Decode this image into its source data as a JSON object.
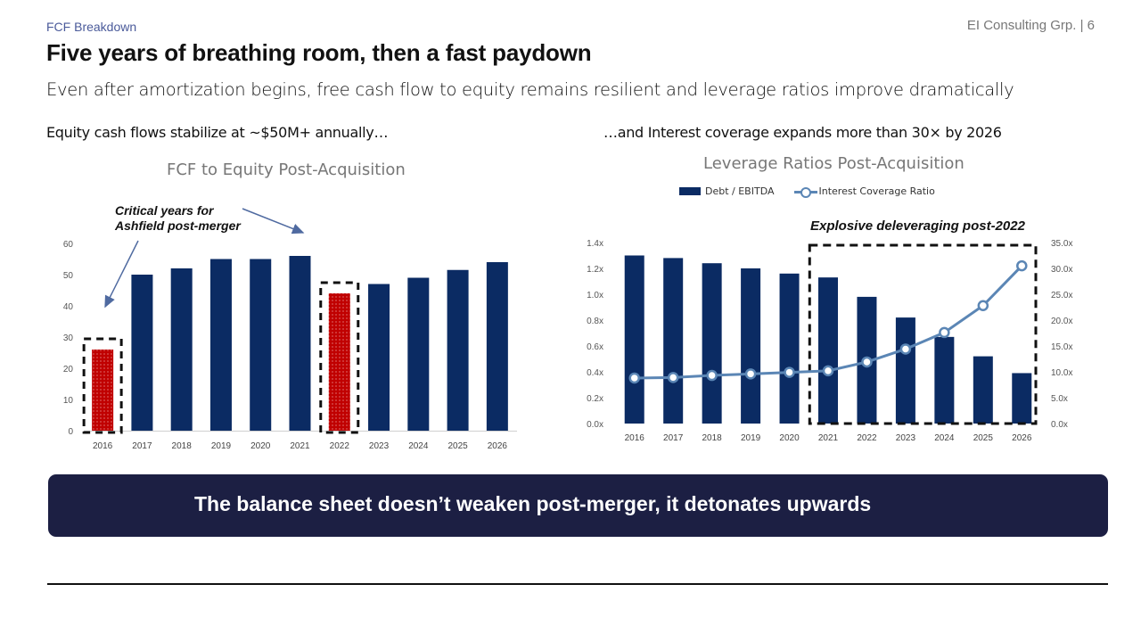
{
  "header": {
    "section_label": "FCF Breakdown",
    "page_ref": "EI Consulting Grp. | 6",
    "title": "Five years of breathing room, then a fast paydown",
    "subtitle": "Even after amortization begins, free cash flow to equity remains resilient and leverage ratios improve dramatically"
  },
  "left_panel": {
    "caption": "Equity cash flows stabilize at ~$50M+ annually…",
    "annotation_line1": "Critical years for",
    "annotation_line2": "Ashfield post-merger"
  },
  "right_panel": {
    "caption": "…and Interest coverage expands more than 30× by 2026",
    "annotation": "Explosive deleveraging post-2022",
    "legend_bar": "Debt / EBITDA",
    "legend_line": "Interest Coverage Ratio"
  },
  "banner": {
    "text": "The balance sheet doesn’t weaken post-merger, it detonates upwards"
  },
  "colors": {
    "navy": "#0b2b63",
    "highlight_red": "#c00000",
    "line_blue": "#5b86b5",
    "banner_bg": "#1c1f43"
  },
  "chart_data": [
    {
      "type": "bar",
      "title": "FCF to Equity Post-Acquisition",
      "categories": [
        "2016",
        "2017",
        "2018",
        "2019",
        "2020",
        "2021",
        "2022",
        "2023",
        "2024",
        "2025",
        "2026"
      ],
      "values": [
        26,
        50,
        52,
        55,
        55,
        56,
        44,
        47,
        49,
        51.5,
        54
      ],
      "highlighted_categories": [
        "2016",
        "2022"
      ],
      "ylim": [
        0,
        60
      ],
      "yticks": [
        0,
        10,
        20,
        30,
        40,
        50,
        60
      ],
      "xlabel": "",
      "ylabel": "",
      "grid": false
    },
    {
      "type": "bar+line",
      "title": "Leverage Ratios Post-Acquisition",
      "categories": [
        "2016",
        "2017",
        "2018",
        "2019",
        "2020",
        "2021",
        "2022",
        "2023",
        "2024",
        "2025",
        "2026"
      ],
      "series": [
        {
          "name": "Debt / EBITDA",
          "kind": "bar",
          "axis": "left",
          "values": [
            1.3,
            1.28,
            1.24,
            1.2,
            1.16,
            1.13,
            0.98,
            0.82,
            0.67,
            0.52,
            0.39
          ]
        },
        {
          "name": "Interest Coverage Ratio",
          "kind": "line",
          "axis": "right",
          "values": [
            8.8,
            8.9,
            9.3,
            9.6,
            9.9,
            10.2,
            11.9,
            14.4,
            17.6,
            22.8,
            30.5
          ]
        }
      ],
      "y_left": {
        "lim": [
          0,
          1.4
        ],
        "ticks": [
          "0.0x",
          "0.2x",
          "0.4x",
          "0.6x",
          "0.8x",
          "1.0x",
          "1.2x",
          "1.4x"
        ]
      },
      "y_right": {
        "lim": [
          0,
          35
        ],
        "ticks": [
          "0.0x",
          "5.0x",
          "10.0x",
          "15.0x",
          "20.0x",
          "25.0x",
          "30.0x",
          "35.0x"
        ]
      },
      "highlighted_range": [
        "2021",
        "2026"
      ],
      "legend_position": "top",
      "grid": false
    }
  ]
}
